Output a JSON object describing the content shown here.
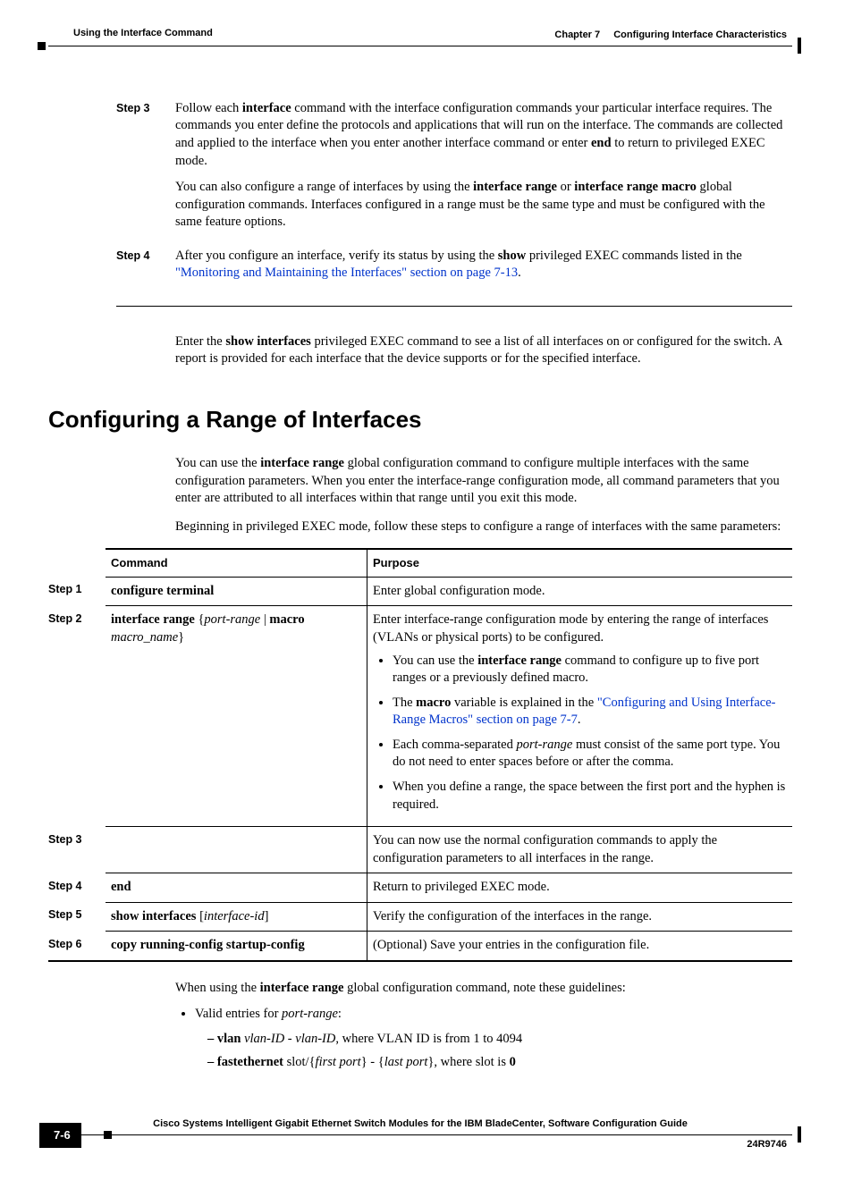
{
  "header": {
    "chapter": "Chapter 7",
    "chapterTitle": "Configuring Interface Characteristics",
    "section": "Using the Interface Command"
  },
  "steps_top": {
    "step3": {
      "label": "Step 3",
      "p1_a": "Follow each ",
      "p1_b": "interface",
      "p1_c": " command with the interface configuration commands your particular interface requires. The commands you enter define the protocols and applications that will run on the interface. The commands are collected and applied to the interface when you enter another interface command or enter ",
      "p1_d": "end",
      "p1_e": " to return to privileged EXEC mode.",
      "p2_a": "You can also configure a range of interfaces by using the ",
      "p2_b": "interface range",
      "p2_c": " or ",
      "p2_d": "interface range macro",
      "p2_e": " global configuration commands. Interfaces configured in a range must be the same type and must be configured with the same feature options."
    },
    "step4": {
      "label": "Step 4",
      "p1_a": "After you configure an interface, verify its status by using the ",
      "p1_b": "show",
      "p1_c": " privileged EXEC commands listed in the ",
      "p1_link": "\"Monitoring and Maintaining the Interfaces\" section on page 7-13",
      "p1_d": "."
    }
  },
  "after_steps": {
    "a": "Enter the ",
    "b": "show interfaces",
    "c": " privileged EXEC command to see a list of all interfaces on or configured for the switch. A report is provided for each interface that the device supports or for the specified interface."
  },
  "h2": "Configuring a Range of Interfaces",
  "intro": {
    "p1_a": "You can use the ",
    "p1_b": "interface range",
    "p1_c": " global configuration command to configure multiple interfaces with the same configuration parameters. When you enter the interface-range configuration mode, all command parameters that you enter are attributed to all interfaces within that range until you exit this mode.",
    "p2": "Beginning in privileged EXEC mode, follow these steps to configure a range of interfaces with the same parameters:"
  },
  "table": {
    "headers": {
      "command": "Command",
      "purpose": "Purpose"
    },
    "rows": {
      "r1": {
        "step": "Step 1",
        "cmd": "configure terminal",
        "purpose": "Enter global configuration mode."
      },
      "r2": {
        "step": "Step 2",
        "cmd_a": "interface range",
        "cmd_b": "port-range",
        "cmd_c": "macro",
        "cmd_d": "macro_name",
        "purpose_p": "Enter interface-range configuration mode by entering the range of interfaces (VLANs or physical ports) to be configured.",
        "li1_a": "You can use the ",
        "li1_b": "interface range",
        "li1_c": " command to configure up to five port ranges or a previously defined macro.",
        "li2_a": "The ",
        "li2_b": "macro",
        "li2_c": " variable is explained in the ",
        "li2_link": "\"Configuring and Using Interface-Range Macros\" section on page 7-7",
        "li2_d": ".",
        "li3_a": "Each comma-separated ",
        "li3_b": "port-range",
        "li3_c": " must consist of the same port type. You do not need to enter spaces before or after the comma.",
        "li4": "When you define a range, the space between the first port and the hyphen is required."
      },
      "r3": {
        "step": "Step 3",
        "purpose": "You can now use the normal configuration commands to apply the configuration parameters to all interfaces in the range."
      },
      "r4": {
        "step": "Step 4",
        "cmd": "end",
        "purpose": "Return to privileged EXEC mode."
      },
      "r5": {
        "step": "Step 5",
        "cmd_a": "show interfaces",
        "cmd_b": "interface-id",
        "purpose": "Verify the configuration of the interfaces in the range."
      },
      "r6": {
        "step": "Step 6",
        "cmd": "copy running-config startup-config",
        "purpose": "(Optional) Save your entries in the configuration file."
      }
    }
  },
  "guidelines": {
    "intro_a": "When using the ",
    "intro_b": "interface range",
    "intro_c": " global configuration command, note these guidelines:",
    "li1_a": "Valid entries for ",
    "li1_b": "port-range",
    "li1_c": ":",
    "sub1_a": "vlan",
    "sub1_b": "vlan-ID - vlan-ID",
    "sub1_c": ", where VLAN ID is from 1 to 4094",
    "sub2_a": "fastethernet",
    "sub2_b": " slot/{",
    "sub2_c": "first port",
    "sub2_d": "} - {",
    "sub2_e": "last port",
    "sub2_f": "}, where slot is ",
    "sub2_g": "0"
  },
  "footer": {
    "title": "Cisco Systems Intelligent Gigabit Ethernet Switch Modules for the IBM BladeCenter, Software Configuration Guide",
    "page": "7-6",
    "doc": "24R9746"
  }
}
